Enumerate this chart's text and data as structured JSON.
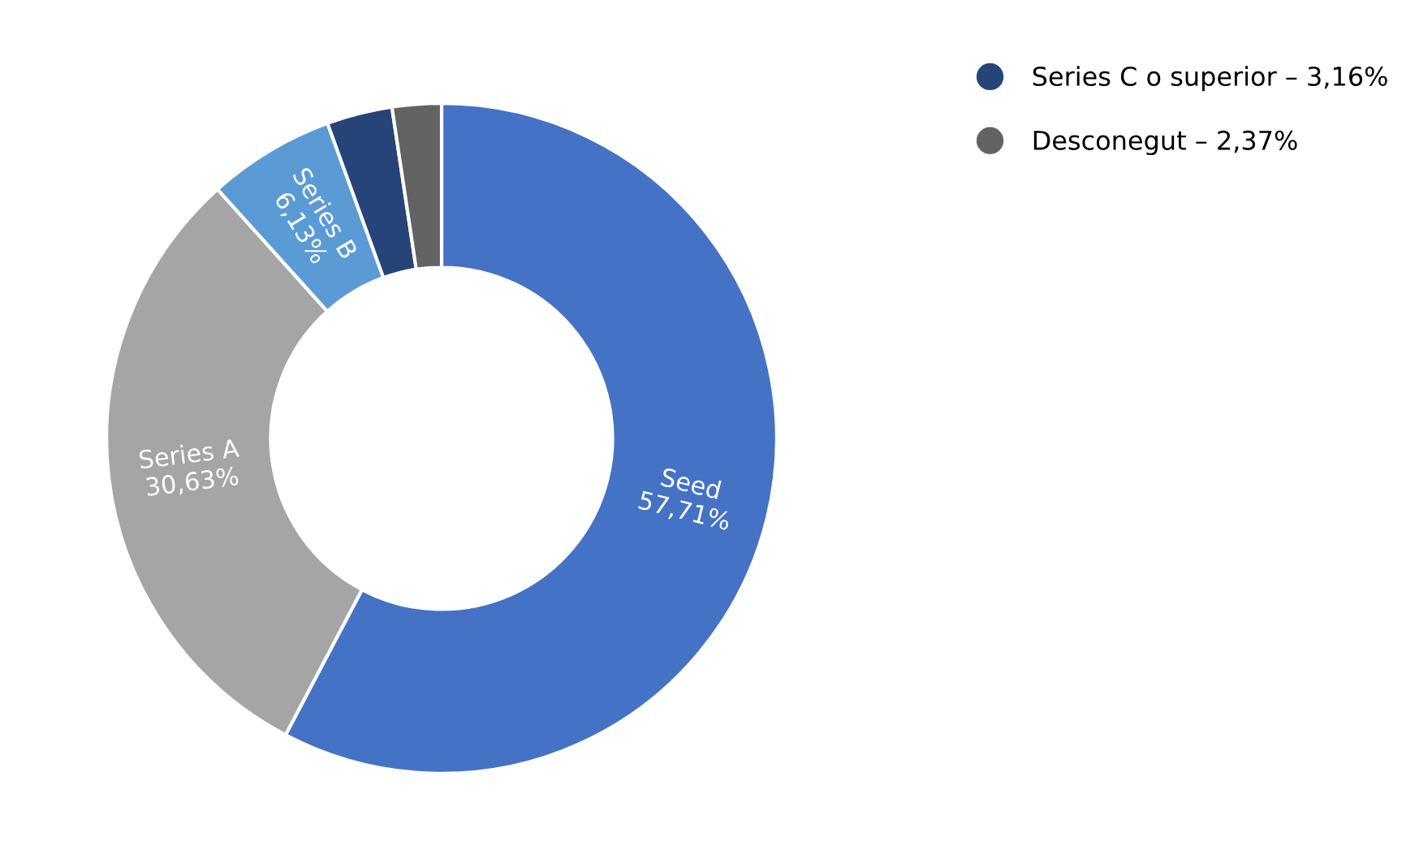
{
  "chart_data": {
    "type": "donut",
    "categories": [
      "Seed",
      "Series A",
      "Series B",
      "Series C o superior",
      "Desconegut"
    ],
    "values": [
      57.71,
      30.63,
      6.13,
      3.16,
      2.37
    ],
    "value_labels": [
      "57,71%",
      "30,63%",
      "6,13%",
      "3,16%",
      "2,37%"
    ],
    "colors": [
      "#4472c4",
      "#a5a5a5",
      "#5b9bd5",
      "#264478",
      "#636363"
    ],
    "legend": "top right"
  }
}
